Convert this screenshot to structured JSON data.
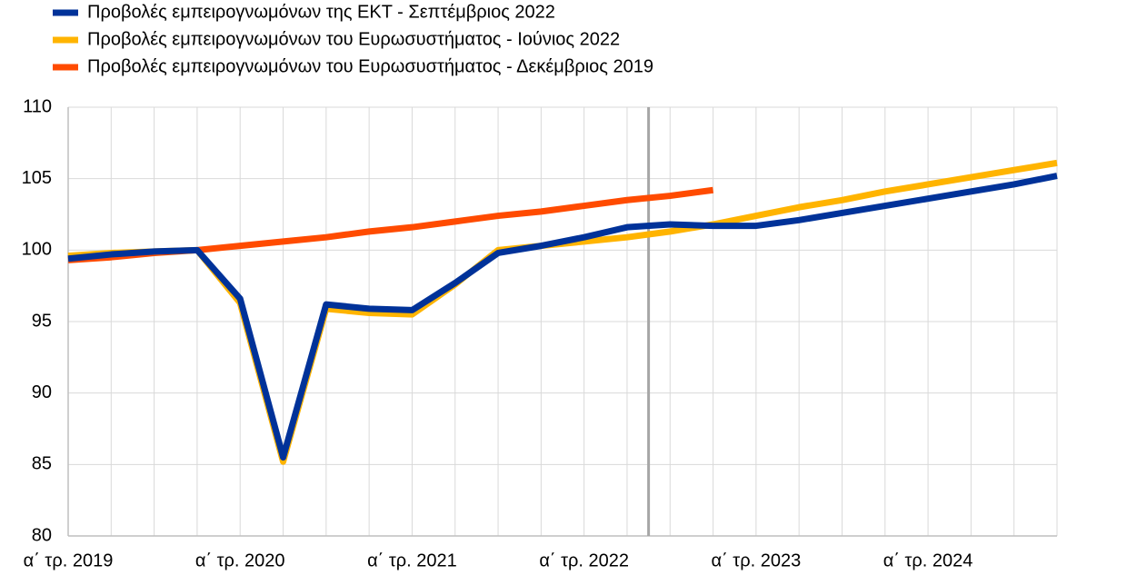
{
  "chart_data": {
    "type": "line",
    "categories": [
      "α΄ τρ. 2019",
      null,
      null,
      null,
      "α΄ τρ. 2020",
      null,
      null,
      null,
      "α΄ τρ. 2021",
      null,
      null,
      null,
      "α΄ τρ. 2022",
      null,
      null,
      null,
      "α΄ τρ. 2023",
      null,
      null,
      null,
      "α΄ τρ. 2024",
      null,
      null,
      null
    ],
    "series": [
      {
        "name": "Προβολές εμπειρογνωμόνων της ΕΚΤ - Σεπτέμβριος 2022",
        "color": "#003299",
        "values": [
          99.4,
          99.7,
          99.9,
          100.0,
          96.6,
          85.5,
          96.2,
          95.9,
          95.8,
          97.7,
          99.8,
          100.3,
          100.9,
          101.6,
          101.8,
          101.7,
          101.7,
          102.1,
          102.6,
          103.1,
          103.6,
          104.1,
          104.6,
          105.2
        ]
      },
      {
        "name": "Προβολές εμπειρογνωμόνων του Ευρωσυστήματος - Ιούνιος 2022",
        "color": "#ffb400",
        "values": [
          99.6,
          99.8,
          99.9,
          100.0,
          96.3,
          85.2,
          95.9,
          95.6,
          95.5,
          97.6,
          100.0,
          100.3,
          100.6,
          100.9,
          101.3,
          101.8,
          102.4,
          103.0,
          103.5,
          104.1,
          104.6,
          105.1,
          105.6,
          106.1
        ]
      },
      {
        "name": "Προβολές εμπειρογνωμόνων του Ευρωσυστήματος - Δεκέμβριος 2019",
        "color": "#ff4b00",
        "values": [
          99.3,
          99.5,
          99.8,
          100.0,
          100.3,
          100.6,
          100.9,
          101.3,
          101.6,
          102.0,
          102.4,
          102.7,
          103.1,
          103.5,
          103.8,
          104.2,
          null,
          null,
          null,
          null,
          null,
          null,
          null,
          null
        ]
      }
    ],
    "ylim": [
      80,
      110
    ],
    "yticks": [
      80,
      85,
      90,
      95,
      100,
      105,
      110
    ],
    "grid": true,
    "legend": "top-left"
  }
}
